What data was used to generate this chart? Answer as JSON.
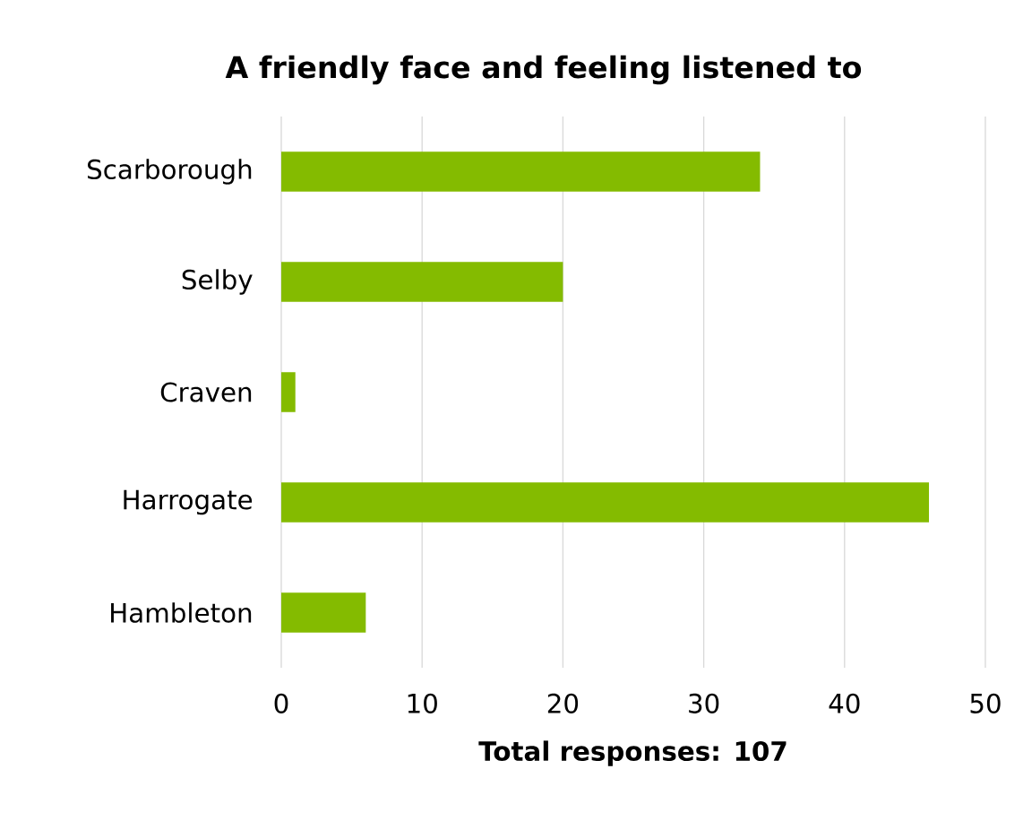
{
  "chart_data": {
    "type": "bar",
    "orientation": "horizontal",
    "title": "A friendly face and feeling listened to",
    "xlabel": "Total responses: 107",
    "categories": [
      "Scarborough",
      "Selby",
      "Craven",
      "Harrogate",
      "Hambleton"
    ],
    "values": [
      34,
      20,
      1,
      46,
      6
    ],
    "color": "#84bb00",
    "xlim": [
      0,
      50
    ],
    "xticks": [
      0,
      10,
      20,
      30,
      40,
      50
    ],
    "grid": "x"
  }
}
